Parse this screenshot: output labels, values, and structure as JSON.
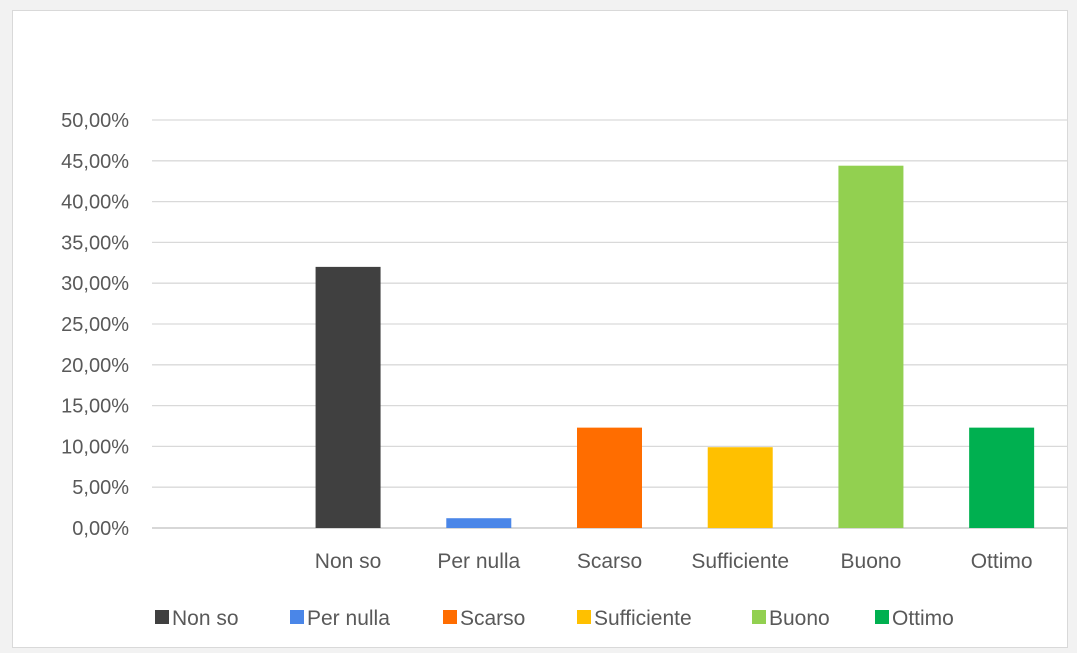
{
  "chart_data": {
    "type": "bar",
    "title": "",
    "xlabel": "",
    "ylabel": "",
    "categories": [
      "",
      "Non so",
      "Per nulla",
      "Scarso",
      "Sufficiente",
      "Buono",
      "Ottimo"
    ],
    "values": [
      null,
      32.0,
      1.2,
      12.3,
      9.9,
      44.4,
      12.3
    ],
    "colors": [
      "#ffffff",
      "#404040",
      "#4a86e8",
      "#ff6d00",
      "#ffc000",
      "#92d050",
      "#00b050"
    ],
    "ylim": [
      0,
      50
    ],
    "yticks": [
      "0,00%",
      "5,00%",
      "10,00%",
      "15,00%",
      "20,00%",
      "25,00%",
      "30,00%",
      "35,00%",
      "40,00%",
      "45,00%",
      "50,00%"
    ],
    "grid": true,
    "legend_position": "bottom",
    "legend": [
      {
        "label": "Non so",
        "color": "#404040"
      },
      {
        "label": "Per nulla",
        "color": "#4a86e8"
      },
      {
        "label": "Scarso",
        "color": "#ff6d00"
      },
      {
        "label": "Sufficiente",
        "color": "#ffc000"
      },
      {
        "label": "Buono",
        "color": "#92d050"
      },
      {
        "label": "Ottimo",
        "color": "#00b050"
      }
    ]
  }
}
